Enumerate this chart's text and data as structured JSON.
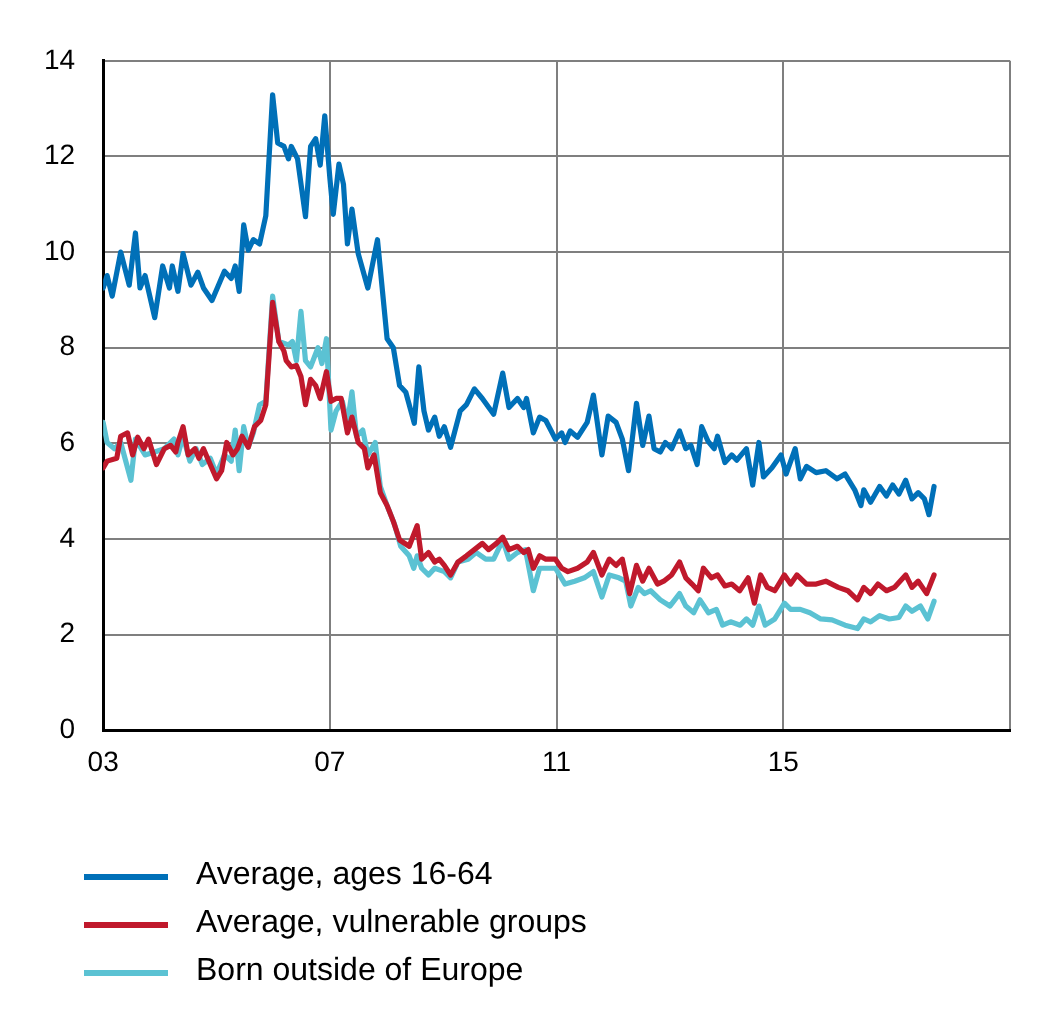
{
  "chart_data": {
    "type": "line",
    "xlim": [
      2003,
      2019
    ],
    "xticks": [
      {
        "value": 2003,
        "label": "03"
      },
      {
        "value": 2007,
        "label": "07"
      },
      {
        "value": 2011,
        "label": "11"
      },
      {
        "value": 2015,
        "label": "15"
      },
      {
        "value": 2019,
        "label": null
      }
    ],
    "ylim": [
      0,
      14
    ],
    "yticks": [
      0,
      2,
      4,
      6,
      8,
      10,
      12,
      14
    ],
    "grid": true,
    "legend": "bottom",
    "marker": "none",
    "line_style": "solid",
    "series": [
      {
        "name": "Average, ages 16-64",
        "color": "#0070b8",
        "x": [
          2003.0,
          2003.07,
          2003.16,
          2003.31,
          2003.46,
          2003.57,
          2003.65,
          2003.74,
          2003.91,
          2004.05,
          2004.17,
          2004.22,
          2004.32,
          2004.41,
          2004.55,
          2004.67,
          2004.77,
          2004.92,
          2005.14,
          2005.26,
          2005.33,
          2005.4,
          2005.48,
          2005.56,
          2005.65,
          2005.76,
          2005.87,
          2005.99,
          2006.08,
          2006.19,
          2006.27,
          2006.32,
          2006.43,
          2006.57,
          2006.66,
          2006.75,
          2006.83,
          2006.91,
          2007.0,
          2007.06,
          2007.16,
          2007.24,
          2007.31,
          2007.39,
          2007.5,
          2007.67,
          2007.84,
          2008.01,
          2008.12,
          2008.23,
          2008.34,
          2008.49,
          2008.57,
          2008.66,
          2008.74,
          2008.85,
          2008.93,
          2009.02,
          2009.13,
          2009.3,
          2009.41,
          2009.55,
          2009.69,
          2009.89,
          2010.05,
          2010.16,
          2010.31,
          2010.42,
          2010.47,
          2010.59,
          2010.7,
          2010.81,
          2010.98,
          2011.09,
          2011.15,
          2011.24,
          2011.37,
          2011.54,
          2011.65,
          2011.8,
          2011.91,
          2012.05,
          2012.16,
          2012.27,
          2012.41,
          2012.52,
          2012.63,
          2012.72,
          2012.83,
          2012.92,
          2013.03,
          2013.17,
          2013.28,
          2013.37,
          2013.48,
          2013.56,
          2013.67,
          2013.78,
          2013.84,
          2013.97,
          2014.09,
          2014.18,
          2014.35,
          2014.46,
          2014.57,
          2014.65,
          2014.8,
          2014.96,
          2015.05,
          2015.21,
          2015.3,
          2015.41,
          2015.58,
          2015.75,
          2015.95,
          2016.09,
          2016.26,
          2016.37,
          2016.42,
          2016.54,
          2016.7,
          2016.82,
          2016.93,
          2017.04,
          2017.16,
          2017.27,
          2017.38,
          2017.49,
          2017.57,
          2017.66
        ],
        "values": [
          9.25,
          9.51,
          9.08,
          10.0,
          9.31,
          10.4,
          9.25,
          9.51,
          8.63,
          9.71,
          9.25,
          9.71,
          9.18,
          9.97,
          9.31,
          9.58,
          9.25,
          8.99,
          9.6,
          9.45,
          9.71,
          9.18,
          10.57,
          10.04,
          10.26,
          10.17,
          10.76,
          13.29,
          12.28,
          12.21,
          11.95,
          12.21,
          11.95,
          10.74,
          12.21,
          12.37,
          11.82,
          12.85,
          11.55,
          10.79,
          11.84,
          11.42,
          10.17,
          10.9,
          9.97,
          9.25,
          10.26,
          8.19,
          8.0,
          7.21,
          7.07,
          6.42,
          7.6,
          6.68,
          6.28,
          6.55,
          6.15,
          6.35,
          5.92,
          6.68,
          6.81,
          7.14,
          6.94,
          6.61,
          7.47,
          6.75,
          6.94,
          6.75,
          6.94,
          6.22,
          6.55,
          6.48,
          6.09,
          6.22,
          6.02,
          6.26,
          6.13,
          6.44,
          7.01,
          5.76,
          6.57,
          6.44,
          6.09,
          5.43,
          6.84,
          5.96,
          6.57,
          5.89,
          5.82,
          6.02,
          5.89,
          6.26,
          5.89,
          5.96,
          5.56,
          6.35,
          6.05,
          5.89,
          6.15,
          5.6,
          5.76,
          5.65,
          5.89,
          5.13,
          6.02,
          5.3,
          5.49,
          5.76,
          5.36,
          5.89,
          5.26,
          5.52,
          5.39,
          5.43,
          5.26,
          5.36,
          5.03,
          4.7,
          5.03,
          4.77,
          5.1,
          4.9,
          5.13,
          4.94,
          5.23,
          4.84,
          4.97,
          4.84,
          4.51,
          5.1
        ]
      },
      {
        "name": "Average, vulnerable groups",
        "color": "#c0192c",
        "x": [
          2003.0,
          2003.07,
          2003.24,
          2003.31,
          2003.43,
          2003.52,
          2003.61,
          2003.72,
          2003.8,
          2003.94,
          2004.08,
          2004.19,
          2004.28,
          2004.32,
          2004.41,
          2004.5,
          2004.62,
          2004.69,
          2004.77,
          2004.89,
          2005.0,
          2005.09,
          2005.18,
          2005.29,
          2005.37,
          2005.45,
          2005.56,
          2005.67,
          2005.78,
          2005.87,
          2005.99,
          2006.1,
          2006.19,
          2006.23,
          2006.32,
          2006.41,
          2006.49,
          2006.57,
          2006.66,
          2006.75,
          2006.83,
          2006.94,
          2007.02,
          2007.11,
          2007.2,
          2007.31,
          2007.39,
          2007.5,
          2007.61,
          2007.67,
          2007.78,
          2007.89,
          2008.01,
          2008.12,
          2008.23,
          2008.4,
          2008.54,
          2008.62,
          2008.74,
          2008.85,
          2008.93,
          2009.02,
          2009.13,
          2009.26,
          2009.41,
          2009.55,
          2009.69,
          2009.8,
          2009.94,
          2010.05,
          2010.16,
          2010.31,
          2010.42,
          2010.5,
          2010.59,
          2010.7,
          2010.81,
          2010.98,
          2011.09,
          2011.2,
          2011.37,
          2011.54,
          2011.65,
          2011.8,
          2011.93,
          2012.05,
          2012.16,
          2012.29,
          2012.41,
          2012.52,
          2012.63,
          2012.78,
          2012.89,
          2013.03,
          2013.17,
          2013.28,
          2013.39,
          2013.5,
          2013.59,
          2013.73,
          2013.84,
          2013.97,
          2014.09,
          2014.23,
          2014.38,
          2014.49,
          2014.6,
          2014.72,
          2014.85,
          2015.02,
          2015.13,
          2015.24,
          2015.41,
          2015.58,
          2015.75,
          2015.97,
          2016.14,
          2016.31,
          2016.42,
          2016.54,
          2016.67,
          2016.82,
          2016.96,
          2017.16,
          2017.27,
          2017.38,
          2017.53,
          2017.66
        ],
        "values": [
          5.49,
          5.63,
          5.69,
          6.15,
          6.22,
          5.76,
          6.13,
          5.89,
          6.09,
          5.56,
          5.89,
          5.96,
          5.82,
          6.02,
          6.35,
          5.76,
          5.89,
          5.69,
          5.89,
          5.56,
          5.26,
          5.43,
          6.02,
          5.76,
          5.89,
          6.15,
          5.92,
          6.35,
          6.48,
          6.81,
          8.95,
          8.13,
          7.93,
          7.73,
          7.6,
          7.63,
          7.4,
          6.81,
          7.34,
          7.21,
          6.94,
          7.5,
          6.88,
          6.94,
          6.94,
          6.22,
          6.55,
          6.02,
          5.89,
          5.49,
          5.76,
          4.97,
          4.7,
          4.37,
          3.98,
          3.85,
          4.28,
          3.58,
          3.72,
          3.52,
          3.58,
          3.45,
          3.25,
          3.52,
          3.65,
          3.78,
          3.91,
          3.78,
          3.91,
          4.04,
          3.78,
          3.85,
          3.72,
          3.78,
          3.39,
          3.65,
          3.58,
          3.58,
          3.39,
          3.32,
          3.39,
          3.52,
          3.72,
          3.25,
          3.58,
          3.45,
          3.58,
          2.86,
          3.45,
          3.12,
          3.39,
          3.06,
          3.12,
          3.25,
          3.52,
          3.19,
          3.06,
          2.92,
          3.39,
          3.19,
          3.25,
          3.02,
          3.06,
          2.92,
          3.19,
          2.66,
          3.25,
          2.99,
          2.92,
          3.25,
          3.06,
          3.25,
          3.06,
          3.06,
          3.12,
          2.99,
          2.92,
          2.73,
          2.99,
          2.86,
          3.06,
          2.92,
          2.99,
          3.25,
          2.99,
          3.12,
          2.86,
          3.25
        ]
      },
      {
        "name": "Born outside of Europe",
        "color": "#5bc2d3",
        "x": [
          2003.0,
          2003.07,
          2003.2,
          2003.31,
          2003.49,
          2003.57,
          2003.74,
          2003.91,
          2004.08,
          2004.25,
          2004.32,
          2004.41,
          2004.53,
          2004.64,
          2004.75,
          2004.89,
          2005.0,
          2005.14,
          2005.26,
          2005.33,
          2005.4,
          2005.48,
          2005.56,
          2005.65,
          2005.76,
          2005.87,
          2005.99,
          2006.1,
          2006.27,
          2006.34,
          2006.41,
          2006.49,
          2006.57,
          2006.66,
          2006.79,
          2006.86,
          2006.94,
          2007.02,
          2007.11,
          2007.22,
          2007.31,
          2007.39,
          2007.47,
          2007.58,
          2007.67,
          2007.8,
          2007.89,
          2008.01,
          2008.14,
          2008.25,
          2008.4,
          2008.48,
          2008.54,
          2008.62,
          2008.74,
          2008.85,
          2009.02,
          2009.13,
          2009.26,
          2009.44,
          2009.58,
          2009.75,
          2009.89,
          2010.05,
          2010.16,
          2010.31,
          2010.45,
          2010.59,
          2010.7,
          2010.81,
          2010.98,
          2011.15,
          2011.32,
          2011.49,
          2011.65,
          2011.8,
          2011.93,
          2012.1,
          2012.22,
          2012.31,
          2012.44,
          2012.55,
          2012.66,
          2012.83,
          2013.0,
          2013.17,
          2013.28,
          2013.42,
          2013.53,
          2013.68,
          2013.82,
          2013.93,
          2014.07,
          2014.24,
          2014.35,
          2014.46,
          2014.57,
          2014.68,
          2014.85,
          2015.02,
          2015.13,
          2015.3,
          2015.47,
          2015.66,
          2015.86,
          2016.09,
          2016.31,
          2016.42,
          2016.54,
          2016.7,
          2016.87,
          2017.04,
          2017.16,
          2017.27,
          2017.42,
          2017.55,
          2017.66
        ],
        "values": [
          6.44,
          6.02,
          5.89,
          6.02,
          5.23,
          6.09,
          5.76,
          5.82,
          5.89,
          6.09,
          5.76,
          6.15,
          5.63,
          5.89,
          5.56,
          5.69,
          5.36,
          5.76,
          5.63,
          6.28,
          5.43,
          6.35,
          5.92,
          6.22,
          6.81,
          6.88,
          9.08,
          8.13,
          8.06,
          8.13,
          7.73,
          8.76,
          7.73,
          7.6,
          8.0,
          7.67,
          8.19,
          6.28,
          6.68,
          6.88,
          6.42,
          7.08,
          6.15,
          6.28,
          5.76,
          6.02,
          5.1,
          4.7,
          4.31,
          3.85,
          3.65,
          3.39,
          3.65,
          3.39,
          3.25,
          3.39,
          3.32,
          3.19,
          3.52,
          3.58,
          3.72,
          3.58,
          3.58,
          3.98,
          3.58,
          3.72,
          3.78,
          2.92,
          3.39,
          3.39,
          3.39,
          3.06,
          3.12,
          3.19,
          3.32,
          2.79,
          3.25,
          3.19,
          3.12,
          2.6,
          2.99,
          2.86,
          2.92,
          2.73,
          2.6,
          2.86,
          2.6,
          2.46,
          2.73,
          2.46,
          2.53,
          2.2,
          2.27,
          2.2,
          2.33,
          2.2,
          2.6,
          2.2,
          2.33,
          2.66,
          2.53,
          2.53,
          2.46,
          2.33,
          2.31,
          2.2,
          2.13,
          2.33,
          2.27,
          2.4,
          2.33,
          2.36,
          2.6,
          2.49,
          2.6,
          2.33,
          2.7
        ]
      }
    ]
  }
}
